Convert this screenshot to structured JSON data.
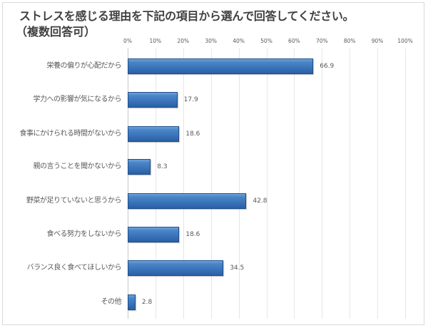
{
  "chart_data": {
    "type": "bar",
    "orientation": "horizontal",
    "title": "ストレスを感じる理由を下記の項目から選んで回答してください。",
    "subtitle": "（複数回答可）",
    "xlabel": "",
    "ylabel": "",
    "xlim": [
      0,
      100
    ],
    "x_ticks": [
      "0%",
      "10%",
      "20%",
      "30%",
      "40%",
      "50%",
      "60%",
      "70%",
      "80%",
      "90%",
      "100%"
    ],
    "grid": true,
    "legend": null,
    "bar_color": "#3a73b8",
    "categories": [
      "栄養の偏りが心配だから",
      "学力への影響が気になるから",
      "食事にかけられる時間がないから",
      "親の言うことを聞かないから",
      "野菜が足りていないと思うから",
      "食べる努力をしないから",
      "バランス良く食べてほしいから",
      "その他"
    ],
    "values": [
      66.9,
      17.9,
      18.6,
      8.3,
      42.8,
      18.6,
      34.5,
      2.8
    ],
    "value_labels": [
      "66.9",
      "17.9",
      "18.6",
      "8.3",
      "42.8",
      "18.6",
      "34.5",
      "2.8"
    ]
  }
}
